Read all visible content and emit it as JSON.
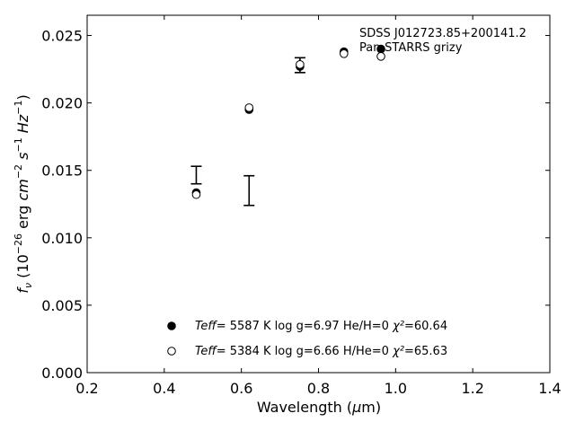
{
  "chart_data": {
    "type": "scatter",
    "xlabel": "Wavelength (μm)",
    "ylabel": "fν (10⁻²⁶ erg cm⁻² s⁻¹ Hz⁻¹)",
    "xlim": [
      0.2,
      1.4
    ],
    "ylim": [
      0.0,
      0.0265
    ],
    "x_ticks": [
      "0.2",
      "0.4",
      "0.6",
      "0.8",
      "1.0",
      "1.2",
      "1.4"
    ],
    "y_ticks": [
      "0.000",
      "0.005",
      "0.010",
      "0.015",
      "0.020",
      "0.025"
    ],
    "grid": false,
    "annotations": [
      "SDSS J012723.85+200141.2",
      "Pan-STARRS grizy"
    ],
    "observed": {
      "x": [
        0.483,
        0.62,
        0.752
      ],
      "y": [
        0.01465,
        0.0135,
        0.0228
      ],
      "yerr": [
        0.00065,
        0.0011,
        0.00055
      ]
    },
    "series": [
      {
        "marker": "filled",
        "x": [
          0.483,
          0.62,
          0.752,
          0.866,
          0.962
        ],
        "y": [
          0.01335,
          0.0195,
          0.0227,
          0.0238,
          0.024
        ],
        "legend": {
          "teff_symbol": "Teff",
          "teff": "5587 K",
          "logg": "log g=6.97",
          "comp": "He/H=0",
          "chi_symbol": "χ²",
          "chi": "60.64"
        }
      },
      {
        "marker": "open",
        "x": [
          0.483,
          0.62,
          0.752,
          0.866,
          0.962
        ],
        "y": [
          0.0132,
          0.01965,
          0.02285,
          0.02365,
          0.02345
        ],
        "legend": {
          "teff_symbol": "Teff",
          "teff": "5384 K",
          "logg": "log g=6.66",
          "comp": "H/He=0",
          "chi_symbol": "χ²",
          "chi": "65.63"
        }
      }
    ]
  }
}
